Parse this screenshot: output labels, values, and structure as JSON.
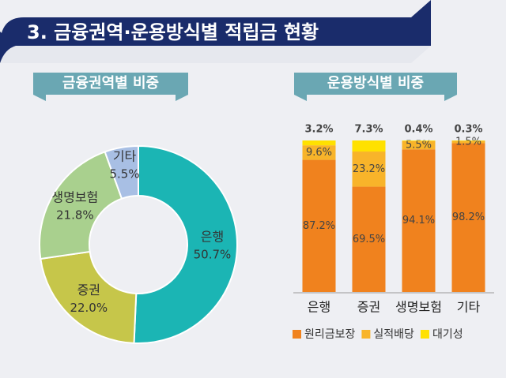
{
  "header": {
    "title": "3. 금융권역·운용방식별 적립금 현황"
  },
  "chart_data": [
    {
      "type": "donut",
      "title": "금융권역별 비중",
      "categories": [
        "은행",
        "증권",
        "생명보험",
        "기타"
      ],
      "values": [
        50.7,
        22.0,
        21.8,
        5.5
      ],
      "value_labels": [
        "50.7%",
        "22.0%",
        "21.8%",
        "5.5%"
      ],
      "colors": [
        "#1bb5b4",
        "#c6c64a",
        "#a9d08e",
        "#a8bfe4"
      ]
    },
    {
      "type": "stacked_bar_100",
      "title": "운용방식별 비중",
      "categories": [
        "은행",
        "증권",
        "생명보험",
        "기타"
      ],
      "series": [
        {
          "name": "원리금보장",
          "color": "#f0821e",
          "values": [
            87.2,
            69.5,
            94.1,
            98.2
          ],
          "value_labels": [
            "87.2%",
            "69.5%",
            "94.1%",
            "98.2%"
          ]
        },
        {
          "name": "실적배당",
          "color": "#f8b42a",
          "values": [
            9.6,
            23.2,
            5.5,
            1.5
          ],
          "value_labels": [
            "9.6%",
            "23.2%",
            "5.5%",
            "1.5%"
          ]
        },
        {
          "name": "대기성",
          "color": "#ffe100",
          "values": [
            3.2,
            7.3,
            0.4,
            0.3
          ],
          "value_labels": [
            "3.2%",
            "7.3%",
            "0.4%",
            "0.3%"
          ]
        }
      ],
      "legend": "bottom"
    }
  ]
}
